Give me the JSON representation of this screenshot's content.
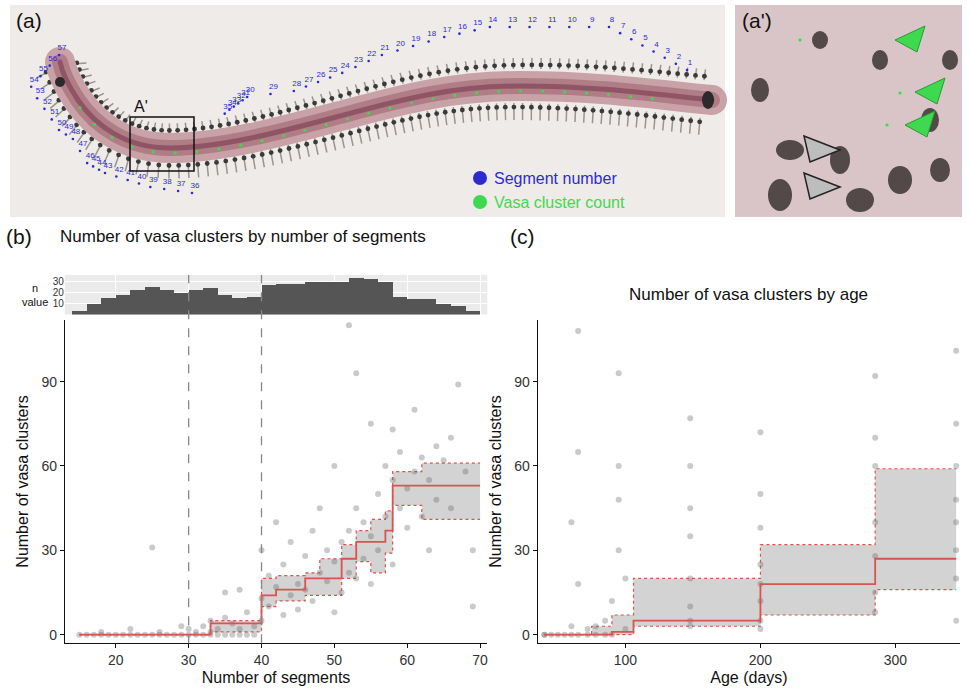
{
  "panel_a": {
    "label": "(a)",
    "inset_label": "A'",
    "legend": [
      {
        "text": "Segment number",
        "color": "#2b2bd0"
      },
      {
        "text": "Vasa cluster count",
        "color": "#3fd94f"
      }
    ],
    "segment_numbers": [
      1,
      2,
      3,
      4,
      5,
      6,
      7,
      8,
      9,
      10,
      11,
      12,
      13,
      14,
      15,
      16,
      17,
      18,
      19,
      20,
      21,
      22,
      23,
      24,
      25,
      26,
      27,
      28,
      29,
      30,
      31,
      32,
      33,
      34,
      35,
      36,
      37,
      38,
      39,
      40,
      41,
      42,
      43,
      44,
      45,
      46,
      47,
      48,
      49,
      50,
      51,
      52,
      53,
      54,
      55,
      56,
      57
    ]
  },
  "panel_a_prime": {
    "label": "(a')"
  },
  "chart_data": [
    {
      "type": "histogram",
      "panel": "(b)",
      "y_label": "n value",
      "bins": [
        14,
        16,
        18,
        20,
        22,
        24,
        26,
        28,
        30,
        32,
        34,
        36,
        38,
        40,
        42,
        44,
        46,
        48,
        50,
        52,
        54,
        56,
        58,
        60,
        62,
        64,
        66,
        68,
        70
      ],
      "counts": [
        3,
        10,
        15,
        18,
        22,
        25,
        22,
        20,
        22,
        24,
        18,
        15,
        16,
        27,
        28,
        28,
        30,
        30,
        30,
        33,
        32,
        30,
        16,
        14,
        14,
        10,
        8,
        3
      ],
      "color": "#555555",
      "xlim": [
        13,
        71
      ],
      "xticks": [
        20,
        30,
        40,
        50,
        60,
        70
      ],
      "ylim": [
        0,
        36
      ],
      "yticks": [
        10,
        20,
        30
      ],
      "grid": true,
      "tick_labels": "y"
    },
    {
      "type": "scatter",
      "title": "Number of vasa clusters by number of segments",
      "x_label": "Number of segments",
      "y_label": "Number of vasa clusters",
      "color": "#666666",
      "x": [
        15,
        16,
        17,
        18,
        19,
        20,
        21,
        22,
        23,
        24,
        25,
        26,
        27,
        28,
        29,
        30,
        31,
        32,
        33,
        34,
        35,
        36,
        37,
        38,
        39,
        18,
        22,
        26,
        29,
        30,
        25,
        31,
        32,
        33,
        34,
        35,
        36,
        37,
        38,
        39,
        35,
        33,
        37,
        40,
        40,
        40,
        41,
        41,
        42,
        42,
        43,
        43,
        44,
        44,
        45,
        45,
        46,
        46,
        47,
        47,
        48,
        48,
        49,
        49,
        50,
        50,
        50,
        51,
        51,
        52,
        52,
        52,
        53,
        53,
        53,
        54,
        54,
        55,
        55,
        55,
        56,
        56,
        57,
        57,
        58,
        58,
        58,
        59,
        59,
        60,
        60,
        61,
        61,
        62,
        62,
        63,
        63,
        64,
        64,
        65,
        66,
        66,
        67,
        68,
        69,
        69
      ],
      "values": [
        0,
        0,
        0,
        0,
        0,
        0,
        0,
        0,
        0,
        0,
        0,
        0,
        0,
        0,
        0,
        0,
        0,
        0,
        0,
        0,
        0,
        0,
        0,
        0,
        0,
        1,
        2,
        1,
        3,
        2,
        31,
        1,
        3,
        5,
        2,
        15,
        4,
        16,
        8,
        3,
        6,
        1,
        2,
        13,
        30,
        5,
        21,
        10,
        17,
        40,
        7,
        25,
        14,
        33,
        18,
        9,
        28,
        16,
        37,
        12,
        22,
        45,
        19,
        30,
        26,
        8,
        60,
        33,
        15,
        37,
        22,
        110,
        45,
        20,
        93,
        40,
        27,
        75,
        35,
        18,
        50,
        30,
        60,
        42,
        55,
        25,
        73,
        65,
        45,
        52,
        38,
        58,
        80,
        63,
        42,
        55,
        30,
        67,
        48,
        62,
        70,
        45,
        89,
        58,
        30,
        10
      ],
      "steps": {
        "x": [
          15,
          33,
          40,
          42,
          46,
          48,
          51,
          53,
          55,
          57,
          58,
          62,
          70
        ],
        "median": [
          0,
          4,
          14,
          16,
          20,
          20,
          27,
          33,
          33,
          37,
          53,
          53
        ],
        "lower": [
          0,
          1,
          10,
          12,
          14,
          14,
          20,
          26,
          22,
          29,
          46,
          41
        ],
        "upper": [
          0,
          5,
          20,
          21,
          22,
          27,
          32,
          37,
          41,
          44,
          58,
          61
        ],
        "color": "#d9534f"
      },
      "vlines": [
        30,
        40
      ],
      "xlim": [
        13,
        71
      ],
      "xticks": [
        20,
        30,
        40,
        50,
        60,
        70
      ],
      "ylim": [
        -3,
        112
      ],
      "yticks": [
        0,
        30,
        60,
        90
      ],
      "grid": false
    },
    {
      "type": "scatter",
      "panel": "(c)",
      "title": "Number of vasa clusters by age",
      "x_label": "Age (days)",
      "y_label": "Number of vasa clusters",
      "color": "#666666",
      "x": [
        40,
        40,
        45,
        50,
        55,
        60,
        60,
        60,
        65,
        65,
        65,
        65,
        72,
        72,
        78,
        78,
        85,
        85,
        90,
        90,
        95,
        95,
        95,
        95,
        100,
        100,
        148,
        148,
        148,
        148,
        148,
        148,
        148,
        148,
        200,
        200,
        200,
        200,
        200,
        200,
        200,
        200,
        285,
        285,
        285,
        285,
        285,
        285,
        285,
        345,
        345,
        345,
        345,
        345,
        345,
        345,
        345
      ],
      "values": [
        0,
        0,
        0,
        0,
        0,
        0,
        3,
        40,
        0,
        65,
        108,
        18,
        0,
        2,
        0,
        3,
        0,
        5,
        0,
        12,
        30,
        60,
        93,
        48,
        2,
        20,
        5,
        10,
        20,
        35,
        45,
        77,
        60,
        3,
        5,
        12,
        18,
        25,
        38,
        50,
        72,
        2,
        15,
        28,
        40,
        60,
        92,
        70,
        8,
        5,
        20,
        30,
        48,
        60,
        75,
        101,
        40
      ],
      "steps": {
        "x": [
          40,
          75,
          90,
          106,
          200,
          285,
          345
        ],
        "median": [
          0,
          0,
          1,
          5,
          18,
          27
        ],
        "lower": [
          0,
          0,
          0,
          3,
          7,
          16
        ],
        "upper": [
          0,
          3,
          7,
          20,
          32,
          59
        ],
        "color": "#d9534f"
      },
      "xlim": [
        35,
        348
      ],
      "xticks": [
        100,
        200,
        300
      ],
      "ylim": [
        -3,
        112
      ],
      "yticks": [
        0,
        30,
        60,
        90
      ],
      "grid": false
    }
  ]
}
